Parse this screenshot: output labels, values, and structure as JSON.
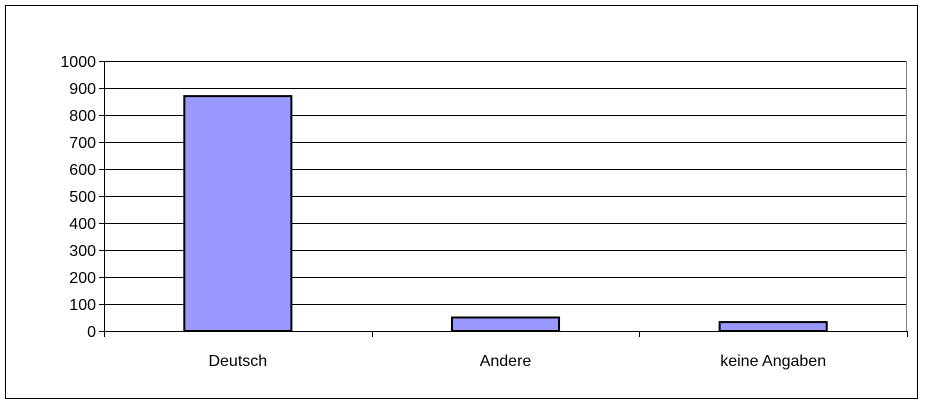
{
  "chart_data": {
    "type": "bar",
    "categories": [
      "Deutsch",
      "Andere",
      "keine Angaben"
    ],
    "values": [
      870,
      50,
      33
    ],
    "ylim": [
      0,
      1000
    ],
    "yticks": [
      0,
      100,
      200,
      300,
      400,
      500,
      600,
      700,
      800,
      900,
      1000
    ],
    "grid": true,
    "legend": "none",
    "bar_color": "#9999ff",
    "bar_edge_color": "#000000",
    "gridline_color": "#000000"
  }
}
